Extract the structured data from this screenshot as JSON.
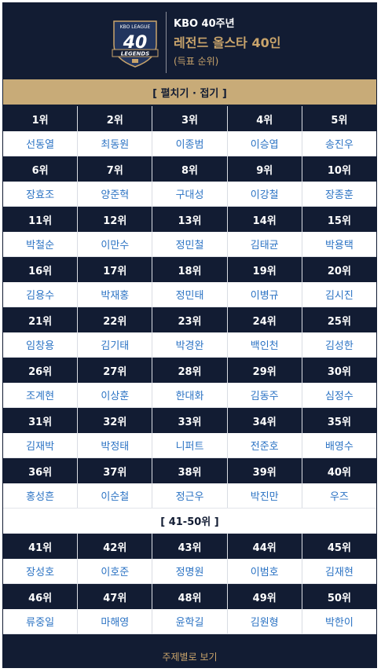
{
  "header": {
    "subtitle": "KBO 40주년",
    "title": "레전드 올스타 40인",
    "note": "(득표 순위)",
    "logo_text": "KBO LEAGUE",
    "logo_number": "40",
    "logo_ribbon": "LEGENDS"
  },
  "toggle_label": "[ 펼치기 · 접기 ]",
  "groups": [
    {
      "ranks": [
        "1위",
        "2위",
        "3위",
        "4위",
        "5위"
      ],
      "names": [
        "선동열",
        "최동원",
        "이종범",
        "이승엽",
        "송진우"
      ]
    },
    {
      "ranks": [
        "6위",
        "7위",
        "8위",
        "9위",
        "10위"
      ],
      "names": [
        "장효조",
        "양준혁",
        "구대성",
        "이강철",
        "장종훈"
      ]
    },
    {
      "ranks": [
        "11위",
        "12위",
        "13위",
        "14위",
        "15위"
      ],
      "names": [
        "박철순",
        "이만수",
        "정민철",
        "김태균",
        "박용택"
      ]
    },
    {
      "ranks": [
        "16위",
        "17위",
        "18위",
        "19위",
        "20위"
      ],
      "names": [
        "김용수",
        "박재홍",
        "정민태",
        "이병규",
        "김시진"
      ]
    },
    {
      "ranks": [
        "21위",
        "22위",
        "23위",
        "24위",
        "25위"
      ],
      "names": [
        "임창용",
        "김기태",
        "박경완",
        "백인천",
        "김성한"
      ]
    },
    {
      "ranks": [
        "26위",
        "27위",
        "28위",
        "29위",
        "30위"
      ],
      "names": [
        "조계현",
        "이상훈",
        "한대화",
        "김동주",
        "심정수"
      ]
    },
    {
      "ranks": [
        "31위",
        "32위",
        "33위",
        "34위",
        "35위"
      ],
      "names": [
        "김재박",
        "박정태",
        "니퍼트",
        "전준호",
        "배영수"
      ]
    },
    {
      "ranks": [
        "36위",
        "37위",
        "38위",
        "39위",
        "40위"
      ],
      "names": [
        "홍성흔",
        "이순철",
        "정근우",
        "박진만",
        "우즈"
      ]
    }
  ],
  "section2_label": "[ 41-50위 ]",
  "groups2": [
    {
      "ranks": [
        "41위",
        "42위",
        "43위",
        "44위",
        "45위"
      ],
      "names": [
        "장성호",
        "이호준",
        "정명원",
        "이범호",
        "김재현"
      ]
    },
    {
      "ranks": [
        "46위",
        "47위",
        "48위",
        "49위",
        "50위"
      ],
      "names": [
        "류중일",
        "마해영",
        "윤학길",
        "김원형",
        "박한이"
      ]
    }
  ],
  "footer_label": "주제별로 보기",
  "colors": {
    "navy": "#121c33",
    "gold": "#c8ab78",
    "link": "#2b73c4"
  }
}
